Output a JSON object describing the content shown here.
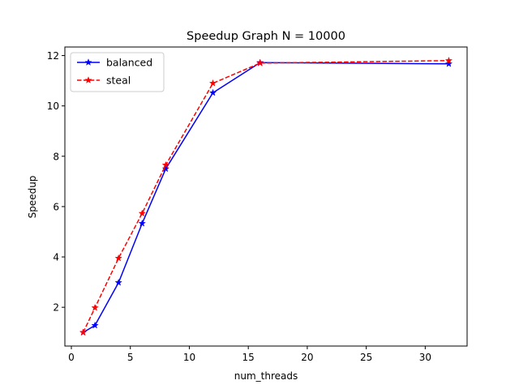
{
  "chart_data": {
    "type": "line",
    "title": "Speedup Graph N = 10000",
    "xlabel": "num_threads",
    "ylabel": "Speedup",
    "xlim": [
      -0.55,
      33.55
    ],
    "ylim": [
      0.46,
      12.34
    ],
    "xticks": [
      0,
      5,
      10,
      15,
      20,
      25,
      30
    ],
    "yticks": [
      2,
      4,
      6,
      8,
      10,
      12
    ],
    "grid": false,
    "legend": "upper left",
    "series": [
      {
        "name": "balanced",
        "color": "#0000ff",
        "linestyle": "solid",
        "marker": "star",
        "x": [
          1,
          2,
          4,
          6,
          8,
          12,
          16,
          32
        ],
        "y": [
          1.0,
          1.28,
          2.98,
          5.33,
          7.5,
          10.52,
          11.72,
          11.67
        ]
      },
      {
        "name": "steal",
        "color": "#ff0000",
        "linestyle": "dashed",
        "marker": "star",
        "x": [
          1,
          2,
          4,
          6,
          8,
          12,
          16,
          32
        ],
        "y": [
          1.0,
          1.98,
          3.95,
          5.73,
          7.65,
          10.9,
          11.7,
          11.8
        ]
      }
    ]
  }
}
